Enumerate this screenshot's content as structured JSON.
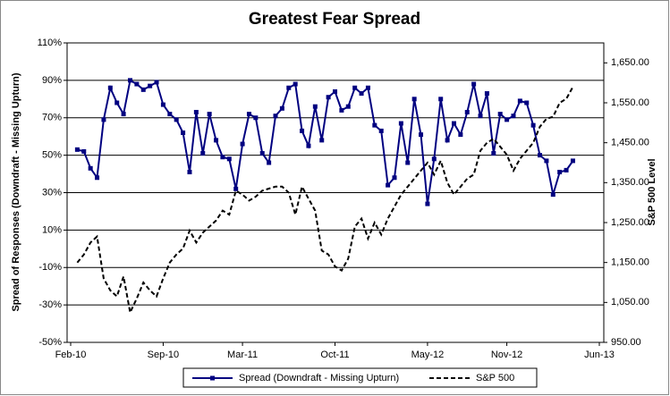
{
  "chart_data": {
    "type": "line",
    "title": "Greatest Fear Spread",
    "y_label": "Spread of Responses (Downdraft - Missing Upturn)",
    "y2_label": "S&P 500 Level",
    "categories": [
      "Feb-10",
      null,
      null,
      null,
      null,
      null,
      null,
      null,
      null,
      null,
      null,
      null,
      null,
      null,
      "Sep-10",
      null,
      null,
      null,
      null,
      null,
      null,
      null,
      null,
      null,
      null,
      null,
      "Mar-11",
      null,
      null,
      null,
      null,
      null,
      null,
      null,
      null,
      null,
      null,
      null,
      null,
      null,
      "Oct-11",
      null,
      null,
      null,
      null,
      null,
      null,
      null,
      null,
      null,
      null,
      null,
      null,
      null,
      "May-12",
      null,
      null,
      null,
      null,
      null,
      null,
      null,
      null,
      null,
      null,
      null,
      "Nov-12",
      null,
      null,
      null,
      null,
      null,
      null,
      null,
      null,
      null,
      null,
      null,
      null,
      null,
      "Jun-13"
    ],
    "ylim": [
      -50,
      110
    ],
    "yticks": [
      {
        "value": -50,
        "label": "-50%"
      },
      {
        "value": -30,
        "label": "-30%"
      },
      {
        "value": -10,
        "label": "-10%"
      },
      {
        "value": 10,
        "label": "10%"
      },
      {
        "value": 30,
        "label": "30%"
      },
      {
        "value": 50,
        "label": "50%"
      },
      {
        "value": 70,
        "label": "70%"
      },
      {
        "value": 90,
        "label": "90%"
      },
      {
        "value": 110,
        "label": "110%"
      }
    ],
    "y2lim": [
      950,
      1700
    ],
    "y2ticks": [
      {
        "value": 950,
        "label": "950.00"
      },
      {
        "value": 1050,
        "label": "1,050.00"
      },
      {
        "value": 1150,
        "label": "1,150.00"
      },
      {
        "value": 1250,
        "label": "1,250.00"
      },
      {
        "value": 1350,
        "label": "1,350.00"
      },
      {
        "value": 1450,
        "label": "1,450.00"
      },
      {
        "value": 1550,
        "label": "1,550.00"
      },
      {
        "value": 1650,
        "label": "1,650.00"
      }
    ],
    "grid": true,
    "legend": "bottom",
    "series": [
      {
        "name": "Spread (Downdraft - Missing Upturn)",
        "color": "#000080",
        "marker": "square",
        "line_style": "solid",
        "values": [
          null,
          53,
          52,
          43,
          38,
          69,
          86,
          78,
          72,
          90,
          88,
          85,
          87,
          89,
          77,
          72,
          69,
          62,
          41,
          73,
          51,
          72,
          58,
          49,
          48,
          32,
          56,
          72,
          70,
          51,
          46,
          71,
          75,
          86,
          88,
          63,
          55,
          76,
          58,
          81,
          84,
          74,
          76,
          86,
          83,
          86,
          66,
          63,
          34,
          38,
          67,
          46,
          80,
          61,
          24,
          48,
          80,
          58,
          67,
          61,
          73,
          88,
          71,
          83,
          51,
          72,
          69,
          71,
          79,
          78,
          66,
          50,
          47,
          29,
          41,
          42,
          47,
          null,
          null,
          null,
          null
        ]
      },
      {
        "name": "S&P 500",
        "color": "#000000",
        "axis": "y2",
        "line_style": "dashed",
        "values": [
          null,
          1150,
          1170,
          1200,
          1215,
          1110,
          1080,
          1065,
          1115,
          1025,
          1060,
          1100,
          1080,
          1065,
          1110,
          1150,
          1170,
          1185,
          1230,
          1200,
          1225,
          1240,
          1255,
          1280,
          1270,
          1330,
          1320,
          1305,
          1315,
          1330,
          1335,
          1340,
          1340,
          1325,
          1270,
          1340,
          1310,
          1280,
          1180,
          1170,
          1140,
          1130,
          1160,
          1240,
          1260,
          1210,
          1250,
          1220,
          1260,
          1290,
          1320,
          1340,
          1360,
          1380,
          1400,
          1370,
          1405,
          1350,
          1320,
          1340,
          1360,
          1370,
          1430,
          1450,
          1460,
          1440,
          1420,
          1380,
          1410,
          1430,
          1450,
          1490,
          1510,
          1515,
          1550,
          1560,
          1590,
          null,
          null,
          null,
          null
        ]
      }
    ]
  }
}
